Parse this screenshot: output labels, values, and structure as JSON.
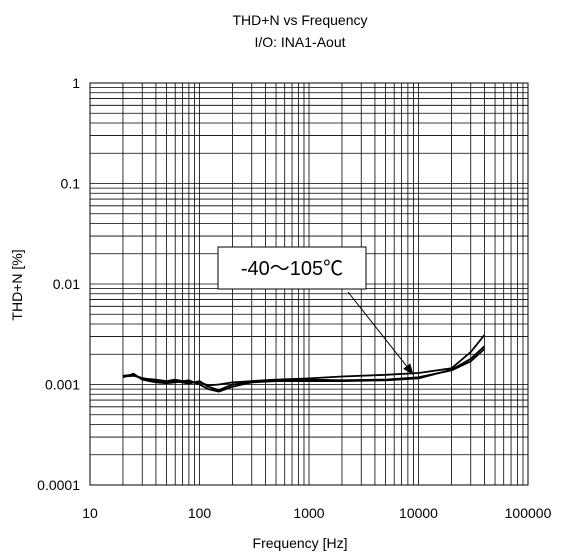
{
  "chart_data": {
    "type": "line",
    "title": "THD+N vs Frequency",
    "subtitle": "I/O: INA1-Aout",
    "xlabel": "Frequency [Hz]",
    "ylabel": "THD+N [%]",
    "x_scale": "log",
    "y_scale": "log",
    "xlim": [
      10,
      100000
    ],
    "ylim": [
      0.0001,
      1
    ],
    "x_ticks": [
      "10",
      "100",
      "1000",
      "10000",
      "100000"
    ],
    "y_ticks": [
      "0.0001",
      "0.001",
      "0.01",
      "0.1",
      "1"
    ],
    "grid": true,
    "annotation": {
      "text": "-40～105℃",
      "arrow_to": [
        9000,
        0.00125
      ]
    },
    "series": [
      {
        "x": [
          20,
          25,
          30,
          40,
          50,
          60,
          80,
          100,
          120,
          150,
          200,
          300,
          500,
          1000,
          2000,
          5000,
          10000,
          20000,
          30000,
          40000
        ],
        "y": [
          0.00122,
          0.00125,
          0.00115,
          0.00112,
          0.00108,
          0.00112,
          0.00105,
          0.00105,
          0.00098,
          0.001,
          0.00105,
          0.00108,
          0.00112,
          0.00115,
          0.0012,
          0.00125,
          0.0013,
          0.00145,
          0.0021,
          0.0031
        ]
      },
      {
        "x": [
          20,
          25,
          30,
          40,
          50,
          60,
          80,
          100,
          120,
          150,
          200,
          300,
          500,
          1000,
          2000,
          5000,
          10000,
          20000,
          30000,
          40000
        ],
        "y": [
          0.00118,
          0.00128,
          0.00112,
          0.00105,
          0.00103,
          0.00105,
          0.0011,
          0.001,
          0.0009,
          0.00085,
          0.00095,
          0.00105,
          0.00108,
          0.00108,
          0.00108,
          0.0011,
          0.00115,
          0.0014,
          0.0018,
          0.0024
        ]
      },
      {
        "x": [
          20,
          25,
          30,
          40,
          50,
          60,
          80,
          100,
          120,
          150,
          200,
          300,
          500,
          1000,
          2000,
          5000,
          10000,
          20000,
          30000,
          40000
        ],
        "y": [
          0.0012,
          0.00122,
          0.00116,
          0.00108,
          0.00106,
          0.00108,
          0.00102,
          0.00108,
          0.00095,
          0.00088,
          0.001,
          0.00106,
          0.0011,
          0.00112,
          0.0011,
          0.00112,
          0.00118,
          0.00138,
          0.0017,
          0.00225
        ]
      }
    ]
  }
}
